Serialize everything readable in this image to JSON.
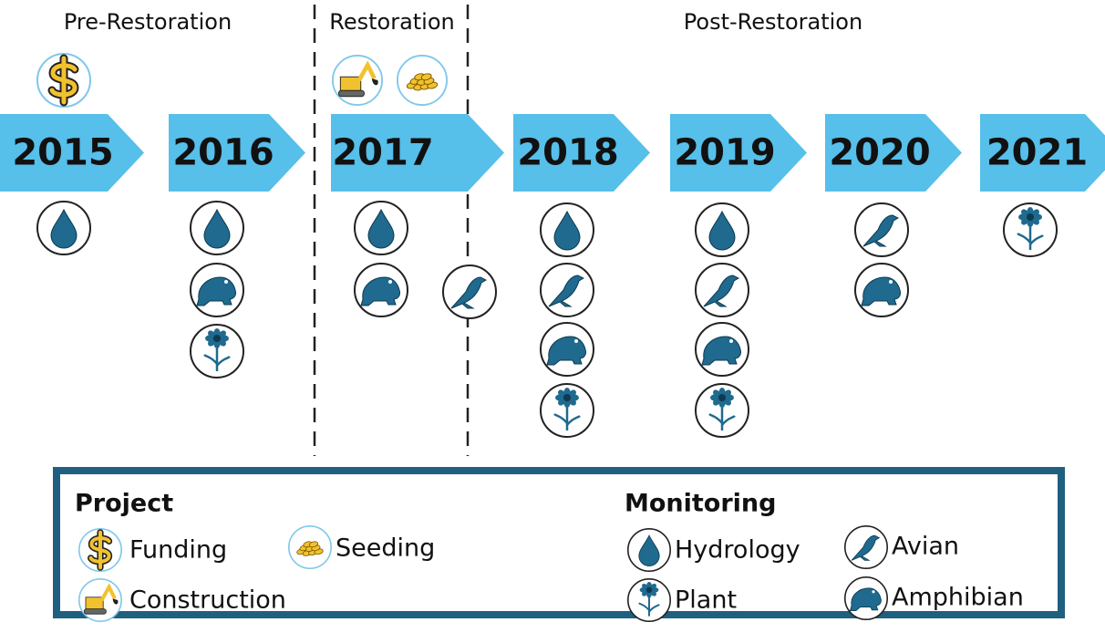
{
  "phases": [
    "Pre-Restoration",
    "Restoration",
    "Post-Restoration"
  ],
  "years": [
    "2015",
    "2016",
    "2017",
    "2018",
    "2019",
    "2020",
    "2021"
  ],
  "legend": {
    "project": {
      "title": "Project",
      "items": [
        "Funding",
        "Seeding",
        "Construction"
      ]
    },
    "monitoring": {
      "title": "Monitoring",
      "items": [
        "Hydrology",
        "Avian",
        "Plant",
        "Amphibian"
      ]
    }
  }
}
